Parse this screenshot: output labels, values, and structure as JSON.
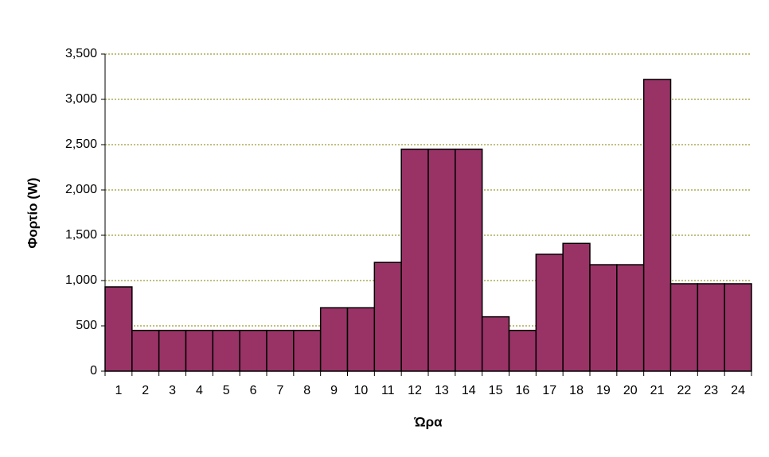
{
  "chart_data": {
    "type": "bar",
    "x_label": "Ώρα",
    "y_label": "Φορτίο (W)",
    "categories": [
      "1",
      "2",
      "3",
      "4",
      "5",
      "6",
      "7",
      "8",
      "9",
      "10",
      "11",
      "12",
      "13",
      "14",
      "15",
      "16",
      "17",
      "18",
      "19",
      "20",
      "21",
      "22",
      "23",
      "24"
    ],
    "values": [
      930,
      450,
      450,
      450,
      450,
      450,
      450,
      450,
      700,
      700,
      1200,
      2450,
      2450,
      2450,
      600,
      450,
      1290,
      1410,
      1175,
      1175,
      3220,
      965,
      965,
      965
    ],
    "color": "#993366",
    "ylim": [
      0,
      3500
    ],
    "yticks": [
      0,
      500,
      {
        "value": 1000,
        "label": "1,000"
      },
      {
        "value": 1500,
        "label": "1,500"
      },
      {
        "value": 2000,
        "label": "2,000"
      },
      {
        "value": 2500,
        "label": "2,500"
      },
      {
        "value": 3000,
        "label": "3,000"
      },
      {
        "value": 3500,
        "label": "3,500"
      }
    ],
    "grid": true
  }
}
